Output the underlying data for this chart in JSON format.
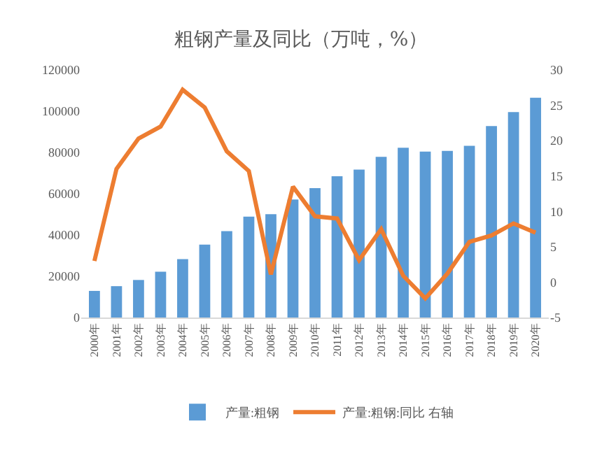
{
  "chart_data": {
    "type": "bar",
    "title": "粗钢产量及同比（万吨，%）",
    "categories": [
      "2000年",
      "2001年",
      "2002年",
      "2003年",
      "2004年",
      "2005年",
      "2006年",
      "2007年",
      "2008年",
      "2009年",
      "2010年",
      "2011年",
      "2012年",
      "2013年",
      "2014年",
      "2015年",
      "2016年",
      "2017年",
      "2018年",
      "2019年",
      "2020年"
    ],
    "series": [
      {
        "name": "产量:粗钢",
        "color": "#5b9bd5",
        "values": [
          12900,
          15200,
          18200,
          22200,
          28300,
          35300,
          41900,
          48900,
          50100,
          57200,
          62700,
          68500,
          71700,
          77900,
          82300,
          80400,
          80800,
          83200,
          92800,
          99600,
          106500
        ]
      },
      {
        "name": "产量:粗钢:同比 右轴",
        "type": "line",
        "axis": "y2",
        "color": "#ed7d31",
        "values": [
          3,
          16,
          20.3,
          22,
          27.2,
          24.7,
          18.5,
          15.7,
          1.1,
          13.5,
          9.3,
          9,
          3.1,
          7.5,
          0.9,
          -2.3,
          1.2,
          5.7,
          6.6,
          8.3,
          7
        ]
      }
    ],
    "ylim": [
      0,
      120000
    ],
    "yticks": [
      0,
      20000,
      40000,
      60000,
      80000,
      100000,
      120000
    ],
    "y2lim": [
      -5,
      30
    ],
    "y2ticks": [
      -5,
      0,
      5,
      10,
      15,
      20,
      25,
      30
    ],
    "grid": false,
    "legend": "bottom",
    "marker": "none"
  }
}
